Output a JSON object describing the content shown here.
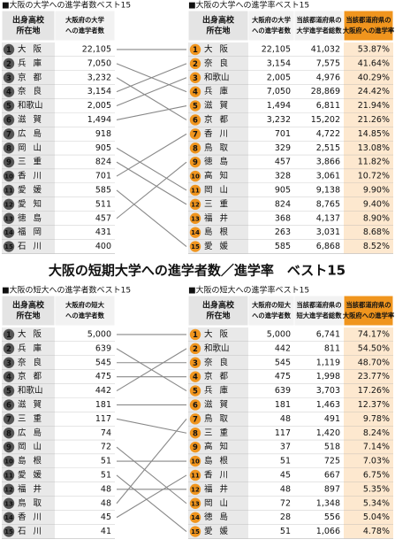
{
  "top": {
    "left": {
      "title": "■大阪の大学への進学者数ベスト15",
      "headers": [
        [
          "出身高校",
          "所在地"
        ],
        [
          "大阪府の大学",
          "への進学者数"
        ]
      ],
      "rows": [
        [
          1,
          "大阪",
          "22,105"
        ],
        [
          2,
          "兵庫",
          "7,050"
        ],
        [
          3,
          "京都",
          "3,232"
        ],
        [
          4,
          "奈良",
          "3,154"
        ],
        [
          5,
          "和歌山",
          "2,005"
        ],
        [
          6,
          "滋賀",
          "1,494"
        ],
        [
          7,
          "広島",
          "918"
        ],
        [
          8,
          "岡山",
          "905"
        ],
        [
          9,
          "三重",
          "824"
        ],
        [
          10,
          "香川",
          "701"
        ],
        [
          11,
          "愛媛",
          "585"
        ],
        [
          12,
          "愛知",
          "511"
        ],
        [
          13,
          "徳島",
          "457"
        ],
        [
          14,
          "福岡",
          "431"
        ],
        [
          15,
          "石川",
          "400"
        ]
      ]
    },
    "right": {
      "title": "■大阪の大学への進学率ベスト15",
      "headers": [
        [
          "出身高校",
          "所在地"
        ],
        [
          "大阪府の大学",
          "への進学者数"
        ],
        [
          "当該都道府県の",
          "大学進学者総数"
        ],
        [
          "当該都道府県の",
          "大阪府への進学率"
        ]
      ],
      "rows": [
        [
          1,
          "大阪",
          "22,105",
          "41,032",
          "53.87%"
        ],
        [
          2,
          "奈良",
          "3,154",
          "7,575",
          "41.64%"
        ],
        [
          3,
          "和歌山",
          "2,005",
          "4,976",
          "40.29%"
        ],
        [
          4,
          "兵庫",
          "7,050",
          "28,869",
          "24.42%"
        ],
        [
          5,
          "滋賀",
          "1,494",
          "6,811",
          "21.94%"
        ],
        [
          6,
          "京都",
          "3,232",
          "15,202",
          "21.26%"
        ],
        [
          7,
          "香川",
          "701",
          "4,722",
          "14.85%"
        ],
        [
          8,
          "鳥取",
          "329",
          "2,515",
          "13.08%"
        ],
        [
          9,
          "徳島",
          "457",
          "3,866",
          "11.82%"
        ],
        [
          10,
          "高知",
          "328",
          "3,061",
          "10.72%"
        ],
        [
          11,
          "岡山",
          "905",
          "9,138",
          "9.90%"
        ],
        [
          12,
          "三重",
          "824",
          "8,765",
          "9.40%"
        ],
        [
          13,
          "福井",
          "368",
          "4,137",
          "8.90%"
        ],
        [
          14,
          "島根",
          "263",
          "3,031",
          "8.68%"
        ],
        [
          15,
          "愛媛",
          "585",
          "6,868",
          "8.52%"
        ]
      ]
    }
  },
  "middle_title": "大阪の短期大学への進学者数／進学率　ベスト15",
  "bottom": {
    "left": {
      "title": "■大阪の短大への進学者数ベスト15",
      "headers": [
        [
          "出身高校",
          "所在地"
        ],
        [
          "大阪府の短大",
          "への進学者数"
        ]
      ],
      "rows": [
        [
          1,
          "大阪",
          "5,000"
        ],
        [
          2,
          "兵庫",
          "639"
        ],
        [
          3,
          "奈良",
          "545"
        ],
        [
          4,
          "京都",
          "475"
        ],
        [
          5,
          "和歌山",
          "442"
        ],
        [
          6,
          "滋賀",
          "181"
        ],
        [
          7,
          "三重",
          "117"
        ],
        [
          8,
          "広島",
          "74"
        ],
        [
          9,
          "岡山",
          "72"
        ],
        [
          10,
          "島根",
          "51"
        ],
        [
          11,
          "愛媛",
          "51"
        ],
        [
          12,
          "福井",
          "48"
        ],
        [
          13,
          "鳥取",
          "48"
        ],
        [
          14,
          "香川",
          "45"
        ],
        [
          15,
          "石川",
          "41"
        ]
      ]
    },
    "right": {
      "title": "■大阪の短大への進学率ベスト15",
      "headers": [
        [
          "出身高校",
          "所在地"
        ],
        [
          "大阪府の短大",
          "への進学者数"
        ],
        [
          "当該都道府県の",
          "短大進学者総数"
        ],
        [
          "当該都道府県の",
          "大阪府への進学率"
        ]
      ],
      "rows": [
        [
          1,
          "大阪",
          "5,000",
          "6,741",
          "74.17%"
        ],
        [
          2,
          "和歌山",
          "442",
          "811",
          "54.50%"
        ],
        [
          3,
          "奈良",
          "545",
          "1,119",
          "48.70%"
        ],
        [
          4,
          "京都",
          "475",
          "1,998",
          "23.77%"
        ],
        [
          5,
          "兵庫",
          "639",
          "3,703",
          "17.26%"
        ],
        [
          6,
          "滋賀",
          "181",
          "1,463",
          "12.37%"
        ],
        [
          7,
          "鳥取",
          "48",
          "491",
          "9.78%"
        ],
        [
          8,
          "三重",
          "117",
          "1,420",
          "8.24%"
        ],
        [
          9,
          "高知",
          "37",
          "518",
          "7.14%"
        ],
        [
          10,
          "島根",
          "51",
          "725",
          "7.03%"
        ],
        [
          11,
          "香川",
          "45",
          "667",
          "6.75%"
        ],
        [
          12,
          "福井",
          "48",
          "897",
          "5.35%"
        ],
        [
          13,
          "岡山",
          "72",
          "1,348",
          "5.34%"
        ],
        [
          14,
          "徳島",
          "28",
          "556",
          "5.04%"
        ],
        [
          15,
          "愛媛",
          "51",
          "1,066",
          "4.78%"
        ]
      ]
    }
  }
}
